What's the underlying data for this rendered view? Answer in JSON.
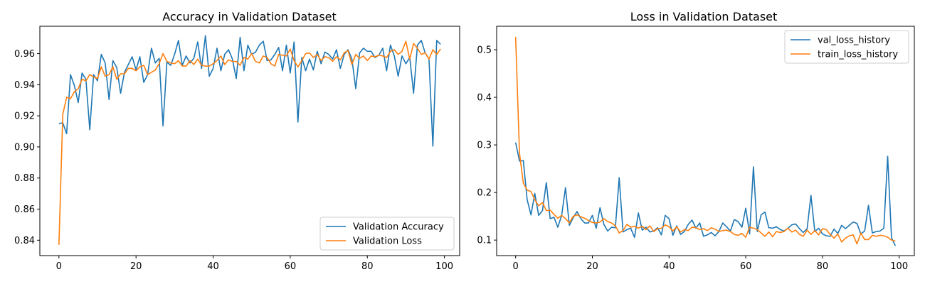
{
  "colors": {
    "blue": "#1f77b4",
    "orange": "#ff7f0e",
    "axis": "#000000",
    "legend_border": "#cccccc"
  },
  "chart_data": [
    {
      "type": "line",
      "title": "Accuracy in Validation Dataset",
      "xlabel": "",
      "ylabel": "",
      "xlim": [
        -4.95,
        103.95
      ],
      "ylim": [
        0.8301,
        0.9776
      ],
      "xticks": [
        0,
        20,
        40,
        60,
        80,
        100
      ],
      "yticks": [
        0.84,
        0.86,
        0.88,
        0.9,
        0.92,
        0.94,
        0.96
      ],
      "ytick_labels": [
        "0.84",
        "0.86",
        "0.88",
        "0.90",
        "0.92",
        "0.94",
        "0.96"
      ],
      "grid": false,
      "legend_position": "lower-right",
      "series": [
        {
          "name": "Validation Accuracy",
          "color": "#1f77b4",
          "x_start": 0,
          "values": [
            0.915,
            0.9155,
            0.9085,
            0.9465,
            0.9395,
            0.9285,
            0.9475,
            0.9435,
            0.911,
            0.9465,
            0.9425,
            0.9595,
            0.954,
            0.9305,
            0.9555,
            0.951,
            0.9345,
            0.948,
            0.953,
            0.958,
            0.9495,
            0.958,
            0.9415,
            0.9465,
            0.9635,
            0.954,
            0.957,
            0.9135,
            0.9545,
            0.9525,
            0.9595,
            0.9685,
            0.9525,
            0.9585,
            0.954,
            0.957,
            0.9675,
            0.9505,
            0.9715,
            0.9455,
            0.9505,
            0.9635,
            0.949,
            0.9595,
            0.9625,
            0.9565,
            0.944,
            0.9705,
            0.949,
            0.9655,
            0.9595,
            0.961,
            0.9655,
            0.968,
            0.9555,
            0.956,
            0.9595,
            0.964,
            0.949,
            0.9655,
            0.9475,
            0.9675,
            0.916,
            0.9575,
            0.949,
            0.9565,
            0.9495,
            0.9615,
            0.9535,
            0.961,
            0.9595,
            0.9565,
            0.9625,
            0.9505,
            0.9595,
            0.9625,
            0.9565,
            0.9375,
            0.9605,
            0.9635,
            0.9615,
            0.9615,
            0.9575,
            0.959,
            0.9635,
            0.949,
            0.9655,
            0.9585,
            0.9455,
            0.9585,
            0.9535,
            0.9575,
            0.9345,
            0.9655,
            0.9685,
            0.9605,
            0.9565,
            0.9005,
            0.9685,
            0.966
          ]
        },
        {
          "name": "Validation Loss",
          "color": "#ff7f0e",
          "x_start": 0,
          "values": [
            0.837,
            0.921,
            0.932,
            0.931,
            0.9355,
            0.9375,
            0.9435,
            0.9425,
            0.9465,
            0.945,
            0.944,
            0.9515,
            0.9455,
            0.9465,
            0.9515,
            0.9435,
            0.947,
            0.947,
            0.9505,
            0.9505,
            0.949,
            0.9515,
            0.9525,
            0.9465,
            0.948,
            0.9495,
            0.9535,
            0.96,
            0.955,
            0.954,
            0.9535,
            0.9555,
            0.952,
            0.952,
            0.9555,
            0.953,
            0.9565,
            0.9525,
            0.952,
            0.952,
            0.9535,
            0.9555,
            0.9585,
            0.953,
            0.956,
            0.955,
            0.955,
            0.9525,
            0.9575,
            0.9565,
            0.96,
            0.955,
            0.954,
            0.9585,
            0.9575,
            0.9535,
            0.952,
            0.9595,
            0.959,
            0.9585,
            0.963,
            0.9555,
            0.9515,
            0.9555,
            0.96,
            0.9605,
            0.9575,
            0.9595,
            0.9555,
            0.958,
            0.9575,
            0.955,
            0.958,
            0.956,
            0.9605,
            0.962,
            0.953,
            0.9595,
            0.957,
            0.9585,
            0.9555,
            0.9585,
            0.958,
            0.959,
            0.9585,
            0.9575,
            0.9615,
            0.9625,
            0.9595,
            0.9615,
            0.968,
            0.9565,
            0.9665,
            0.9635,
            0.9595,
            0.9605,
            0.9565,
            0.9625,
            0.9595,
            0.963
          ]
        }
      ]
    },
    {
      "type": "line",
      "title": "Loss in Validation Dataset",
      "xlabel": "",
      "ylabel": "",
      "xlim": [
        -4.95,
        103.95
      ],
      "ylim": [
        0.0674,
        0.5493
      ],
      "xticks": [
        0,
        20,
        40,
        60,
        80,
        100
      ],
      "yticks": [
        0.1,
        0.2,
        0.3,
        0.4,
        0.5
      ],
      "ytick_labels": [
        "0.1",
        "0.2",
        "0.3",
        "0.4",
        "0.5"
      ],
      "grid": false,
      "legend_position": "upper-right",
      "series": [
        {
          "name": "val_loss_history",
          "color": "#1f77b4",
          "x_start": 0,
          "values": [
            0.305,
            0.266,
            0.267,
            0.185,
            0.153,
            0.198,
            0.152,
            0.162,
            0.221,
            0.145,
            0.148,
            0.127,
            0.152,
            0.21,
            0.131,
            0.147,
            0.16,
            0.145,
            0.136,
            0.136,
            0.152,
            0.125,
            0.168,
            0.133,
            0.119,
            0.127,
            0.126,
            0.231,
            0.117,
            0.122,
            0.125,
            0.106,
            0.157,
            0.121,
            0.127,
            0.117,
            0.119,
            0.126,
            0.111,
            0.152,
            0.145,
            0.11,
            0.13,
            0.112,
            0.118,
            0.133,
            0.142,
            0.125,
            0.136,
            0.108,
            0.111,
            0.116,
            0.109,
            0.118,
            0.136,
            0.128,
            0.119,
            0.143,
            0.139,
            0.127,
            0.167,
            0.113,
            0.254,
            0.118,
            0.153,
            0.159,
            0.126,
            0.125,
            0.128,
            0.122,
            0.119,
            0.125,
            0.132,
            0.134,
            0.124,
            0.116,
            0.124,
            0.194,
            0.118,
            0.125,
            0.113,
            0.109,
            0.108,
            0.123,
            0.114,
            0.131,
            0.124,
            0.131,
            0.138,
            0.135,
            0.113,
            0.119,
            0.173,
            0.115,
            0.118,
            0.119,
            0.125,
            0.276,
            0.105,
            0.088
          ]
        },
        {
          "name": "train_loss_history",
          "color": "#ff7f0e",
          "x_start": 0,
          "values": [
            0.527,
            0.283,
            0.22,
            0.205,
            0.202,
            0.185,
            0.172,
            0.179,
            0.162,
            0.163,
            0.154,
            0.146,
            0.152,
            0.145,
            0.136,
            0.15,
            0.153,
            0.149,
            0.146,
            0.141,
            0.137,
            0.136,
            0.138,
            0.145,
            0.139,
            0.136,
            0.13,
            0.115,
            0.12,
            0.133,
            0.127,
            0.129,
            0.125,
            0.129,
            0.122,
            0.13,
            0.118,
            0.124,
            0.125,
            0.132,
            0.128,
            0.119,
            0.128,
            0.117,
            0.122,
            0.12,
            0.127,
            0.126,
            0.122,
            0.124,
            0.12,
            0.126,
            0.123,
            0.118,
            0.12,
            0.121,
            0.118,
            0.112,
            0.11,
            0.114,
            0.106,
            0.127,
            0.125,
            0.122,
            0.115,
            0.108,
            0.117,
            0.107,
            0.118,
            0.116,
            0.118,
            0.125,
            0.117,
            0.121,
            0.112,
            0.108,
            0.121,
            0.112,
            0.12,
            0.111,
            0.124,
            0.122,
            0.112,
            0.104,
            0.113,
            0.096,
            0.104,
            0.109,
            0.111,
            0.092,
            0.115,
            0.101,
            0.101,
            0.11,
            0.108,
            0.11,
            0.109,
            0.106,
            0.1,
            0.098
          ]
        }
      ]
    }
  ]
}
